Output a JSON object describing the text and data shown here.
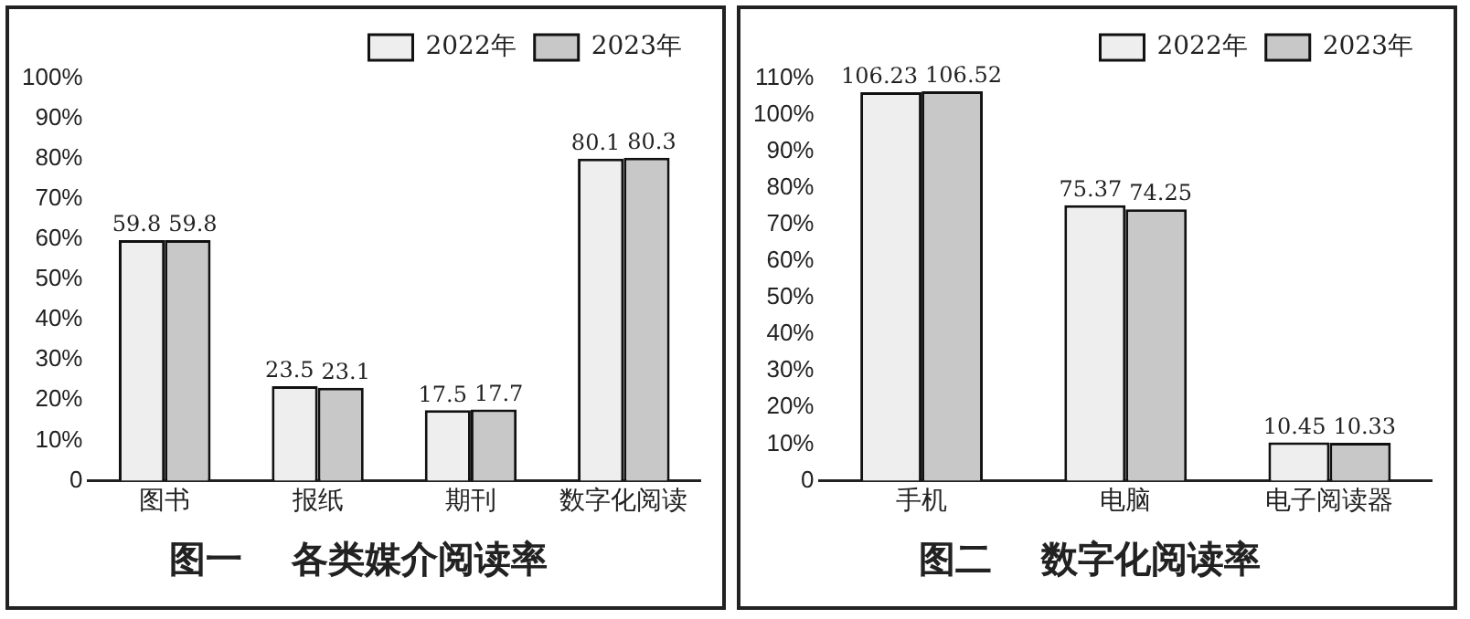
{
  "chart_data": [
    {
      "type": "bar",
      "title": "图一　 各类媒介阅读率",
      "categories": [
        "图书",
        "报纸",
        "期刊",
        "数字化阅读"
      ],
      "series": [
        {
          "name": "2022年",
          "color": "#eeeeee",
          "values": [
            59.8,
            23.5,
            17.5,
            80.1
          ]
        },
        {
          "name": "2023年",
          "color": "#c8c8c8",
          "values": [
            59.8,
            23.1,
            17.7,
            80.3
          ]
        }
      ],
      "ylim": [
        0,
        100
      ],
      "yticks": [
        0,
        {
          "value": 10,
          "label": "10%"
        },
        {
          "value": 20,
          "label": "20%"
        },
        {
          "value": 30,
          "label": "30%"
        },
        {
          "value": 40,
          "label": "40%"
        },
        {
          "value": 50,
          "label": "50%"
        },
        {
          "value": 60,
          "label": "60%"
        },
        {
          "value": 70,
          "label": "70%"
        },
        {
          "value": 80,
          "label": "80%"
        },
        {
          "value": 90,
          "label": "90%"
        },
        {
          "value": 100,
          "label": "100%"
        }
      ],
      "grid": false,
      "legend": "top right",
      "data_labels": true
    },
    {
      "type": "bar",
      "title": "图二　 数字化阅读率",
      "categories": [
        "手机",
        "电脑",
        "电子阅读器"
      ],
      "series": [
        {
          "name": "2022年",
          "color": "#eeeeee",
          "values": [
            106.23,
            75.37,
            10.45
          ]
        },
        {
          "name": "2023年",
          "color": "#c8c8c8",
          "values": [
            106.52,
            74.25,
            10.33
          ]
        }
      ],
      "ylim": [
        0,
        110
      ],
      "yticks": [
        0,
        {
          "value": 10,
          "label": "10%"
        },
        {
          "value": 20,
          "label": "20%"
        },
        {
          "value": 30,
          "label": "30%"
        },
        {
          "value": 40,
          "label": "40%"
        },
        {
          "value": 50,
          "label": "50%"
        },
        {
          "value": 60,
          "label": "60%"
        },
        {
          "value": 70,
          "label": "70%"
        },
        {
          "value": 80,
          "label": "80%"
        },
        {
          "value": 90,
          "label": "90%"
        },
        {
          "value": 100,
          "label": "100%"
        },
        {
          "value": 110,
          "label": "110%"
        }
      ],
      "grid": false,
      "legend": "top right",
      "data_labels": true
    }
  ]
}
